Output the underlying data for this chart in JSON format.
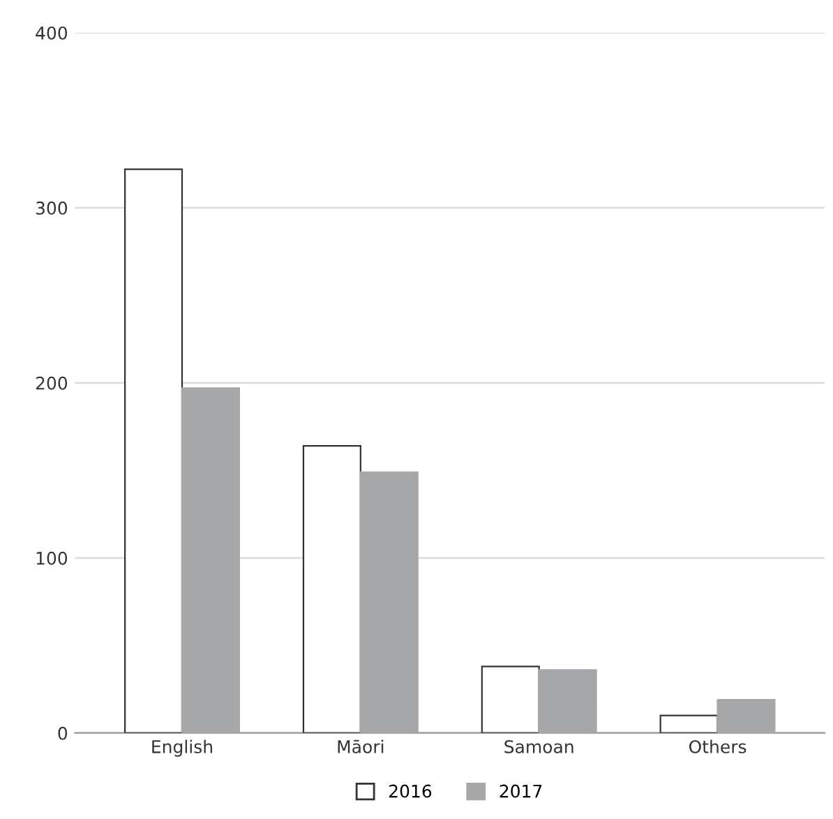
{
  "chart_data": {
    "type": "bar",
    "categories": [
      "English",
      "Māori",
      "Samoan",
      "Others"
    ],
    "series": [
      {
        "name": "2016",
        "color": "#ffffff",
        "values": [
          322,
          164,
          38,
          10
        ]
      },
      {
        "name": "2017",
        "color": "#a6a7a8",
        "values": [
          197,
          149,
          36,
          19
        ]
      }
    ],
    "ylim": [
      0,
      400
    ],
    "yticks": [
      0,
      100,
      200,
      300,
      400
    ],
    "grid": "y",
    "legend": "bottom"
  }
}
